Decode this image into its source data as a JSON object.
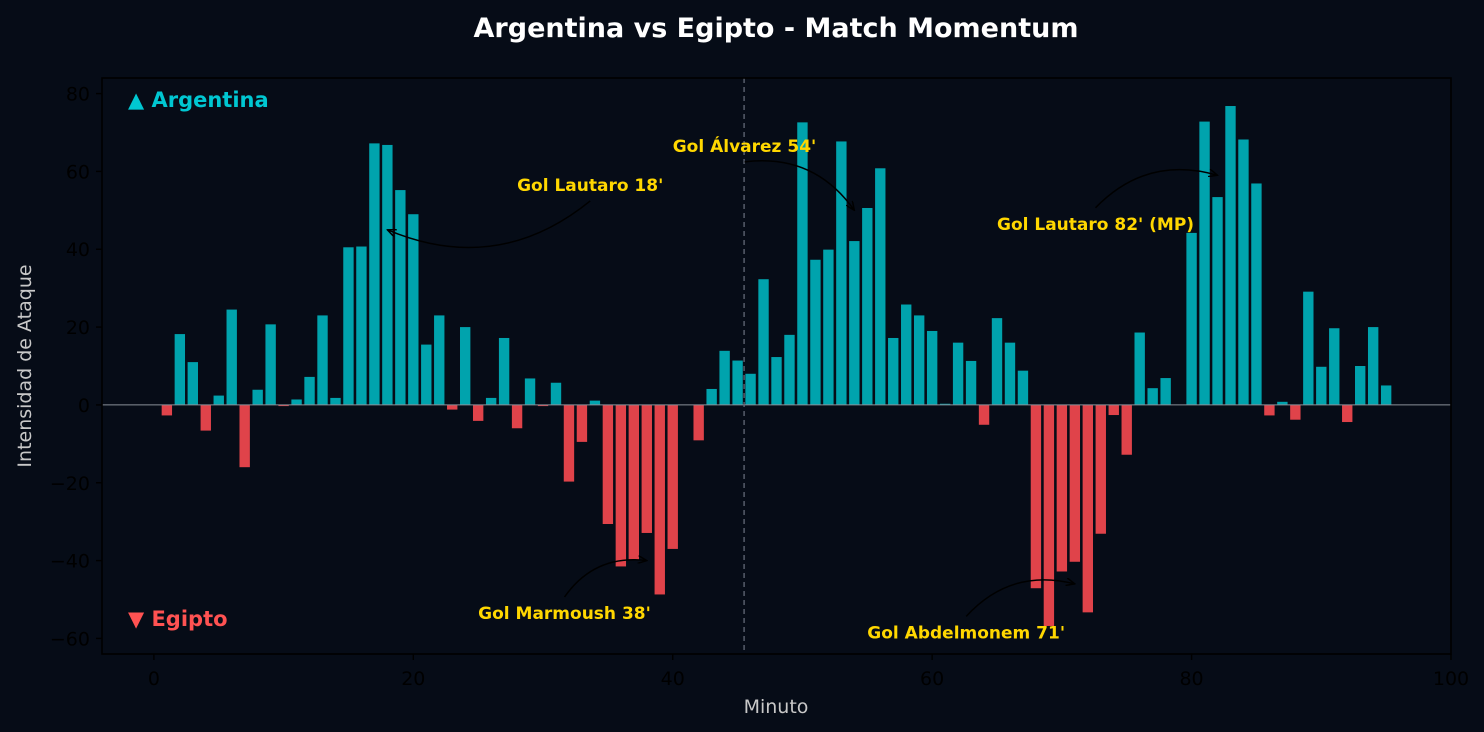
{
  "chart_data": {
    "type": "bar",
    "title": "Argentina vs Egipto - Match Momentum",
    "xlabel": "Minuto",
    "ylabel": "Intensidad de Ataque",
    "xlim": [
      -4,
      100
    ],
    "ylim": [
      -64,
      84
    ],
    "xticks": [
      0,
      20,
      40,
      60,
      80,
      100
    ],
    "yticks": [
      -60,
      -40,
      -20,
      0,
      20,
      40,
      60,
      80
    ],
    "halftime_minute": 45.5,
    "grid": false,
    "colors": {
      "positive": "#00a3ad",
      "negative": "#e0434a",
      "annotation": "#ffd700",
      "background": "#060c17"
    },
    "legend": {
      "positive": {
        "label": "▲ Argentina",
        "color": "#00c7d2",
        "placement": "top-left"
      },
      "negative": {
        "label": "▼ Egipto",
        "color": "#ff5252",
        "placement": "bottom-left"
      }
    },
    "minutes": [
      1,
      2,
      3,
      4,
      5,
      6,
      7,
      8,
      9,
      10,
      11,
      12,
      13,
      14,
      15,
      16,
      17,
      18,
      19,
      20,
      21,
      22,
      23,
      24,
      25,
      26,
      27,
      28,
      29,
      30,
      31,
      32,
      33,
      34,
      35,
      36,
      37,
      38,
      39,
      40,
      41,
      42,
      43,
      44,
      45,
      46,
      47,
      48,
      49,
      50,
      51,
      52,
      53,
      54,
      55,
      56,
      57,
      58,
      59,
      60,
      61,
      62,
      63,
      64,
      65,
      66,
      67,
      68,
      69,
      70,
      71,
      72,
      73,
      74,
      75,
      76,
      77,
      78,
      79,
      80,
      81,
      82,
      83,
      84,
      85,
      86,
      87,
      88,
      89,
      90,
      91,
      92,
      93,
      94,
      95
    ],
    "values": [
      -2.7,
      18.2,
      11,
      -6.6,
      2.4,
      24.5,
      -16,
      3.9,
      20.7,
      -0.3,
      1.4,
      7.2,
      23,
      1.8,
      40.5,
      40.7,
      67.2,
      66.8,
      55.2,
      49,
      15.5,
      23,
      -1.2,
      20,
      -4.1,
      1.8,
      17.2,
      -6,
      6.8,
      -0.3,
      5.7,
      -19.7,
      -9.5,
      1.1,
      -30.6,
      -41.5,
      -39.9,
      -32.9,
      -48.7,
      -37,
      0,
      -9.1,
      4.1,
      13.9,
      11.4,
      8,
      32.3,
      12.3,
      18,
      72.6,
      37.3,
      39.9,
      67.7,
      42.1,
      50.6,
      60.8,
      17.2,
      25.8,
      23,
      19,
      0.3,
      16,
      11.3,
      -5.1,
      22.3,
      16,
      8.8,
      -47.1,
      -56.8,
      -42.8,
      -40.3,
      -53.3,
      -33.1,
      -2.6,
      -12.8,
      18.6,
      4.3,
      6.9,
      0.1,
      44.2,
      72.8,
      53.4,
      76.8,
      68.2,
      56.9,
      -2.7,
      0.8,
      -3.8,
      29.1,
      9.8,
      19.7,
      -4.4,
      10,
      20,
      5
    ]
  },
  "annotations": [
    {
      "label": "Gol Lautaro 18'",
      "x": 18,
      "y": 45,
      "text_x": 28,
      "text_y": 55
    },
    {
      "label": "Gol Marmoush 38'",
      "x": 38,
      "y": -40,
      "text_x": 25,
      "text_y": -55
    },
    {
      "label": "Gol Álvarez 54'",
      "x": 54,
      "y": 50,
      "text_x": 40,
      "text_y": 65
    },
    {
      "label": "Gol Abdelmonem 71'",
      "x": 71,
      "y": -46,
      "text_x": 55,
      "text_y": -60
    },
    {
      "label": "Gol Lautaro 82' (MP)",
      "x": 82,
      "y": 59,
      "text_x": 65,
      "text_y": 45
    }
  ]
}
